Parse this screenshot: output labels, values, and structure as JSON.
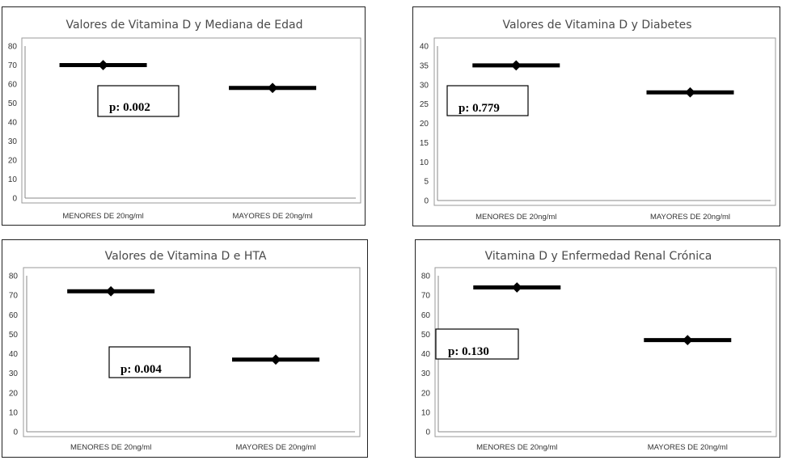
{
  "chart_data": [
    {
      "type": "scatter",
      "title": "Valores de Vitamina D y Mediana de Edad",
      "categories": [
        "MENORES DE 20ng/ml",
        "MAYORES DE 20ng/ml"
      ],
      "values": [
        70,
        58
      ],
      "yticks": [
        "0",
        "10",
        "20",
        "30",
        "40",
        "50",
        "60",
        "70",
        "80"
      ],
      "ylim": [
        0,
        80
      ],
      "grid": false,
      "annotation": "p: 0.002"
    },
    {
      "type": "scatter",
      "title": "Valores de Vitamina D y Diabetes",
      "categories": [
        "MENORES DE 20ng/ml",
        "MAYORES DE 20ng/ml"
      ],
      "values": [
        35,
        28
      ],
      "yticks": [
        "0",
        "5",
        "10",
        "15",
        "20",
        "25",
        "30",
        "35",
        "40"
      ],
      "ylim": [
        0,
        40
      ],
      "grid": false,
      "annotation": "p: 0.779"
    },
    {
      "type": "scatter",
      "title": "Valores de Vitamina D e HTA",
      "categories": [
        "MENORES DE 20ng/ml",
        "MAYORES DE 20ng/ml"
      ],
      "values": [
        72,
        37
      ],
      "yticks": [
        "0",
        "10",
        "20",
        "30",
        "40",
        "50",
        "60",
        "70",
        "80"
      ],
      "ylim": [
        0,
        80
      ],
      "grid": false,
      "annotation": "p: 0.004"
    },
    {
      "type": "scatter",
      "title": "Vitamina D y Enfermedad Renal Crónica",
      "categories": [
        "MENORES DE 20ng/ml",
        "MAYORES DE 20ng/ml"
      ],
      "values": [
        74,
        47
      ],
      "yticks": [
        "0",
        "10",
        "20",
        "30",
        "40",
        "50",
        "60",
        "70",
        "80"
      ],
      "ylim": [
        0,
        80
      ],
      "grid": false,
      "annotation": "p: 0.130"
    }
  ]
}
